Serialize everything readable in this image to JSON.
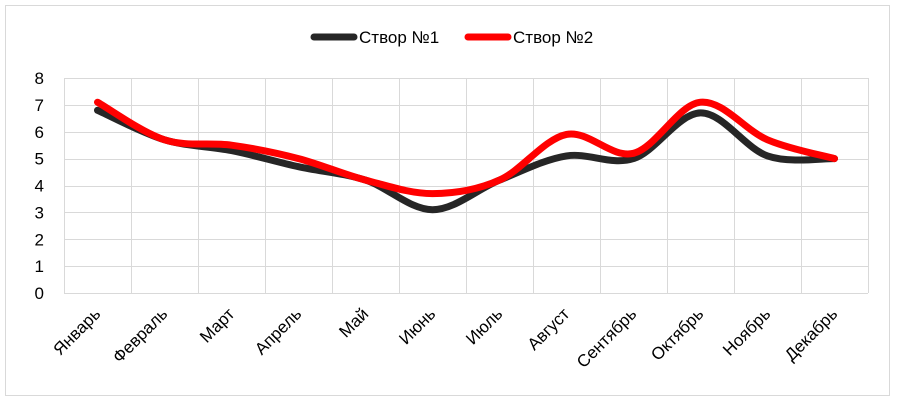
{
  "chart_data": {
    "type": "line",
    "categories": [
      "Январь",
      "Февраль",
      "Март",
      "Апрель",
      "Май",
      "Июнь",
      "Июль",
      "Август",
      "Сентябрь",
      "Октябрь",
      "Ноябрь",
      "Декабрь"
    ],
    "series": [
      {
        "name": "Створ №1",
        "color": "#262626",
        "values": [
          6.8,
          5.7,
          5.3,
          4.7,
          4.2,
          3.1,
          4.2,
          5.1,
          5.0,
          6.7,
          5.1,
          5.0
        ]
      },
      {
        "name": "Створ №2",
        "color": "#ff0000",
        "values": [
          7.1,
          5.7,
          5.5,
          5.0,
          4.2,
          3.7,
          4.2,
          5.9,
          5.2,
          7.1,
          5.7,
          5.0
        ]
      }
    ],
    "title": "",
    "xlabel": "",
    "ylabel": "",
    "ylim": [
      0,
      8
    ],
    "yticks": [
      "0",
      "1",
      "2",
      "3",
      "4",
      "5",
      "6",
      "7",
      "8"
    ],
    "grid": true,
    "legend_position": "top-center",
    "smooth": true
  }
}
